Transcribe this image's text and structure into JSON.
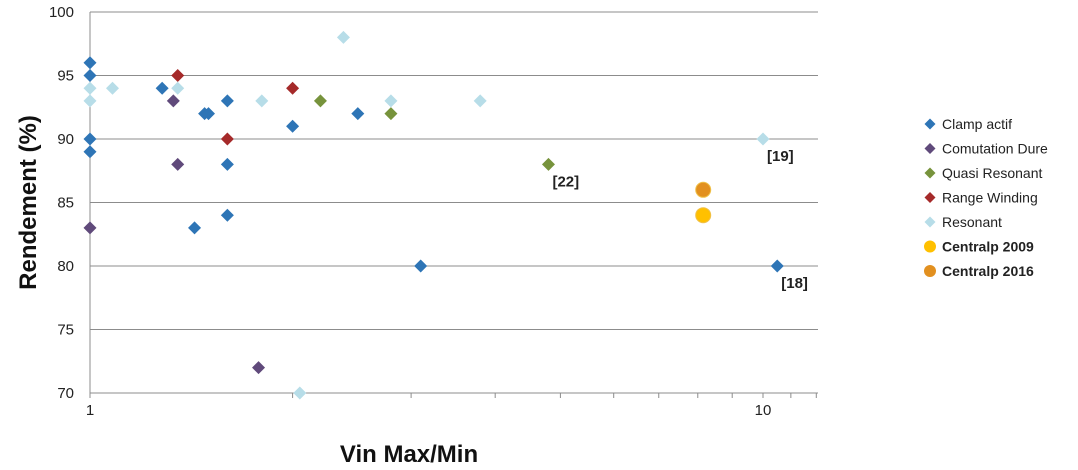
{
  "chart_data": {
    "type": "scatter",
    "title": "",
    "xlabel": "Vin Max/Min",
    "ylabel": "Rendement (%)",
    "xscale": "log",
    "xlim": [
      1,
      12
    ],
    "ylim": [
      70,
      100
    ],
    "grid": "horizontal",
    "legend_position": "right",
    "x_ticks": [
      "1",
      "10"
    ],
    "y_ticks": [
      "70",
      "75",
      "80",
      "85",
      "90",
      "95",
      "100"
    ],
    "series": [
      {
        "name": "Clamp actif",
        "marker": "diamond",
        "color": "#2e75b6",
        "points": [
          {
            "x": 1.0,
            "y": 96
          },
          {
            "x": 1.0,
            "y": 95
          },
          {
            "x": 1.0,
            "y": 90
          },
          {
            "x": 1.0,
            "y": 89
          },
          {
            "x": 1.28,
            "y": 94
          },
          {
            "x": 1.48,
            "y": 92
          },
          {
            "x": 1.5,
            "y": 92
          },
          {
            "x": 1.6,
            "y": 93
          },
          {
            "x": 1.6,
            "y": 88
          },
          {
            "x": 1.6,
            "y": 84
          },
          {
            "x": 1.43,
            "y": 83
          },
          {
            "x": 2.0,
            "y": 91
          },
          {
            "x": 2.5,
            "y": 92
          },
          {
            "x": 3.1,
            "y": 80
          },
          {
            "x": 10.5,
            "y": 80
          }
        ]
      },
      {
        "name": "Comutation Dure",
        "marker": "diamond",
        "color": "#604a7b",
        "points": [
          {
            "x": 1.0,
            "y": 83
          },
          {
            "x": 1.33,
            "y": 93
          },
          {
            "x": 1.35,
            "y": 88
          },
          {
            "x": 1.78,
            "y": 72
          }
        ]
      },
      {
        "name": "Quasi Resonant",
        "marker": "diamond",
        "color": "#77933c",
        "points": [
          {
            "x": 2.2,
            "y": 93
          },
          {
            "x": 2.8,
            "y": 92
          },
          {
            "x": 4.8,
            "y": 88
          }
        ]
      },
      {
        "name": "Range Winding",
        "marker": "diamond",
        "color": "#a52a2a",
        "points": [
          {
            "x": 1.35,
            "y": 95
          },
          {
            "x": 1.6,
            "y": 90
          },
          {
            "x": 2.0,
            "y": 94
          }
        ]
      },
      {
        "name": "Resonant",
        "marker": "diamond",
        "color": "#b7dde8",
        "points": [
          {
            "x": 1.0,
            "y": 94
          },
          {
            "x": 1.0,
            "y": 93
          },
          {
            "x": 1.08,
            "y": 94
          },
          {
            "x": 1.35,
            "y": 94
          },
          {
            "x": 1.8,
            "y": 93
          },
          {
            "x": 2.05,
            "y": 70
          },
          {
            "x": 2.38,
            "y": 98
          },
          {
            "x": 2.8,
            "y": 93
          },
          {
            "x": 3.8,
            "y": 93
          },
          {
            "x": 10.0,
            "y": 90
          }
        ]
      },
      {
        "name": "Centralp 2009",
        "marker": "circle",
        "color": "#ffc000",
        "points": [
          {
            "x": 8.15,
            "y": 84
          }
        ]
      },
      {
        "name": "Centralp 2016",
        "marker": "circle",
        "color": "#e2901f",
        "points": [
          {
            "x": 8.15,
            "y": 86
          }
        ]
      }
    ],
    "annotations": [
      {
        "text": "[19]",
        "x": 10.0,
        "y": 90
      },
      {
        "text": "[22]",
        "x": 4.8,
        "y": 88
      },
      {
        "text": "[18]",
        "x": 10.5,
        "y": 80
      }
    ]
  }
}
